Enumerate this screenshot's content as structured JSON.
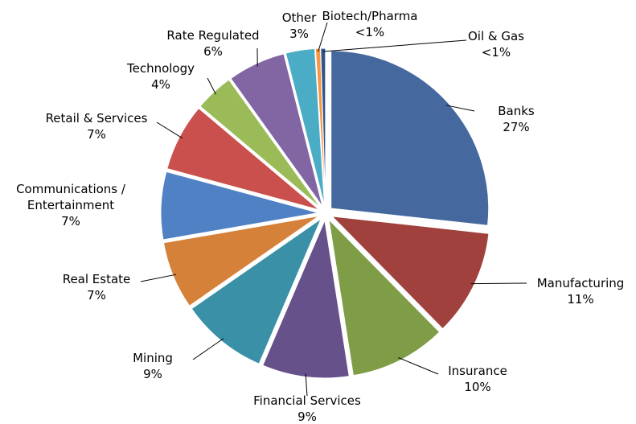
{
  "chart_data": {
    "type": "pie",
    "categories": [
      "Banks",
      "Manufacturing",
      "Insurance",
      "Financial Services",
      "Mining",
      "Real Estate",
      "Communications / Entertainment",
      "Retail & Services",
      "Technology",
      "Rate Regulated",
      "Other",
      "Biotech/Pharma",
      "Oil & Gas"
    ],
    "values": [
      27,
      11,
      10,
      9,
      9,
      7,
      7,
      7,
      4,
      6,
      3,
      0.5,
      0.5
    ],
    "value_labels": [
      "27%",
      "11%",
      "10%",
      "9%",
      "9%",
      "7%",
      "7%",
      "7%",
      "4%",
      "6%",
      "3%",
      "<1%",
      "<1%"
    ],
    "colors": [
      "#45699f",
      "#a0413e",
      "#7f9c46",
      "#67518a",
      "#3a90a6",
      "#d5813a",
      "#4f81c4",
      "#c9504c",
      "#9bbb59",
      "#8266a4",
      "#4bacc6",
      "#f79646",
      "#2f5589"
    ]
  }
}
